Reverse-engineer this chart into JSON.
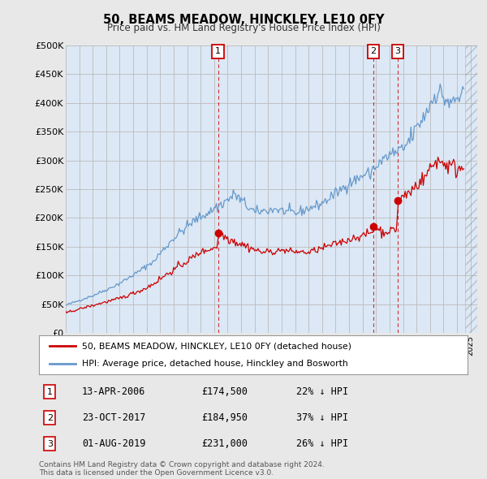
{
  "title": "50, BEAMS MEADOW, HINCKLEY, LE10 0FY",
  "subtitle": "Price paid vs. HM Land Registry's House Price Index (HPI)",
  "ylabel_ticks": [
    "£0",
    "£50K",
    "£100K",
    "£150K",
    "£200K",
    "£250K",
    "£300K",
    "£350K",
    "£400K",
    "£450K",
    "£500K"
  ],
  "ytick_vals": [
    0,
    50000,
    100000,
    150000,
    200000,
    250000,
    300000,
    350000,
    400000,
    450000,
    500000
  ],
  "ylim": [
    0,
    500000
  ],
  "background_color": "#e8e8e8",
  "plot_bg_color": "#dce8f5",
  "legend_line1": "50, BEAMS MEADOW, HINCKLEY, LE10 0FY (detached house)",
  "legend_line2": "HPI: Average price, detached house, Hinckley and Bosworth",
  "legend_color1": "#cc0000",
  "legend_color2": "#6699cc",
  "sale1_date": "13-APR-2006",
  "sale1_price": "£174,500",
  "sale1_hpi": "22% ↓ HPI",
  "sale2_date": "23-OCT-2017",
  "sale2_price": "£184,950",
  "sale2_hpi": "37% ↓ HPI",
  "sale3_date": "01-AUG-2019",
  "sale3_price": "£231,000",
  "sale3_hpi": "26% ↓ HPI",
  "vline1_x": 2006.28,
  "vline2_x": 2017.81,
  "vline3_x": 2019.58,
  "sale1_y": 174500,
  "sale2_y": 184950,
  "sale3_y": 231000,
  "footnote": "Contains HM Land Registry data © Crown copyright and database right 2024.\nThis data is licensed under the Open Government Licence v3.0.",
  "hpi_color": "#6699cc",
  "price_color": "#cc0000",
  "xmin": 1995.0,
  "xmax": 2025.5
}
